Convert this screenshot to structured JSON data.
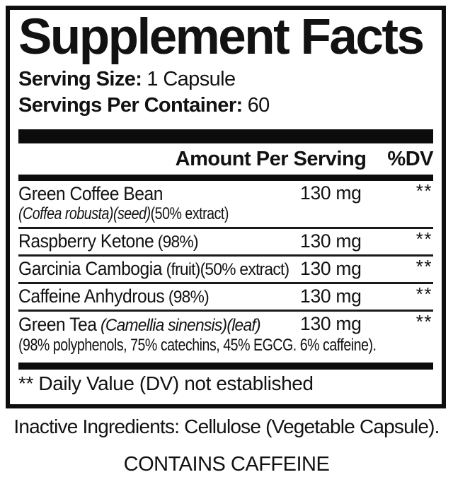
{
  "panel": {
    "title": "Supplement Facts",
    "serving": {
      "size_label": "Serving Size:",
      "size_value": "1 Capsule",
      "per_container_label": "Servings Per Container:",
      "per_container_value": "60"
    },
    "columns": {
      "amount": "Amount Per Serving",
      "dv": "%DV"
    },
    "rows": [
      {
        "name": "Green Coffee Bean",
        "sub_italic": "(Coffea robusta)(seed)",
        "sub_plain": "(50% extract)",
        "amount": "130 mg",
        "dv": "**"
      },
      {
        "name": "Raspberry Ketone",
        "note": "(98%)",
        "amount": "130 mg",
        "dv": "**"
      },
      {
        "name": "Garcinia Cambogia",
        "note": "(fruit)(50% extract)",
        "amount": "130 mg",
        "dv": "**"
      },
      {
        "name": "Caffeine Anhydrous",
        "note": "(98%)",
        "amount": "130 mg",
        "dv": "**"
      },
      {
        "name": "Green Tea",
        "name_italic": "(Camellia sinensis)(leaf)",
        "sub_plain": "(98% polyphenols, 75% catechins, 45% EGCG. 6% caffeine).",
        "amount": "130 mg",
        "dv": "**"
      }
    ],
    "footnote": "** Daily Value (DV) not established",
    "inactive_ingredients": "Inactive Ingredients: Cellulose (Vegetable Capsule).",
    "contains_notice": "CONTAINS CAFFEINE",
    "colors": {
      "ink": "#121212",
      "background": "#ffffff",
      "bar": "#0c0c0c"
    }
  }
}
